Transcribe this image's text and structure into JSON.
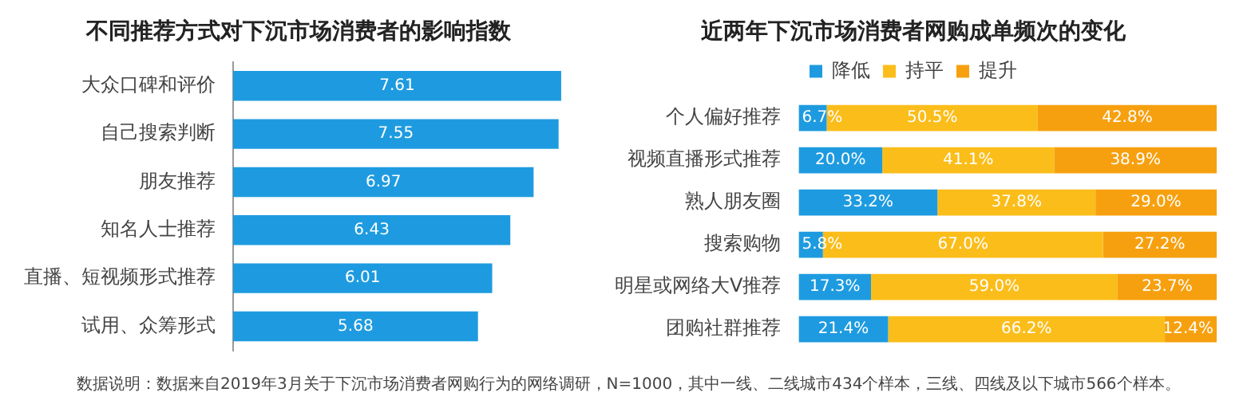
{
  "chart_data": [
    {
      "type": "bar",
      "orientation": "horizontal",
      "title": "不同推荐方式对下沉市场消费者的影响指数",
      "categories": [
        "大众口碑和评价",
        "自己搜索判断",
        "朋友推荐",
        "知名人士推荐",
        "直播、短视频形式推荐",
        "试用、众筹形式"
      ],
      "values": [
        7.61,
        7.55,
        6.97,
        6.43,
        6.01,
        5.68
      ],
      "color": "#1e9be0",
      "data_labels": true,
      "legend": false,
      "annotations": [
        "数据说明：数据来自2019年3月关于下沉市场消费者网购行为的网络调研，N=1000，其中一线、二线城市434个样本，三线、四线及以下城市566个样本。"
      ]
    },
    {
      "type": "bar",
      "orientation": "horizontal",
      "stacked": true,
      "title": "近两年下沉市场消费者网购成单频次的变化",
      "categories": [
        "个人偏好推荐",
        "视频直播形式推荐",
        "熟人朋友圈",
        "搜索购物",
        "明星或网络大V推荐",
        "团购社群推荐"
      ],
      "series": [
        {
          "name": "降低",
          "color": "#1e9be0",
          "values": [
            6.7,
            20.0,
            33.2,
            5.8,
            17.3,
            21.4
          ],
          "value_labels": [
            "6.7%",
            "20.0%",
            "33.2%",
            "5.8%",
            "17.3%",
            "21.4%"
          ]
        },
        {
          "name": "持平",
          "color": "#fbbd1a",
          "values": [
            50.5,
            41.1,
            37.8,
            67.0,
            59.0,
            66.2
          ],
          "value_labels": [
            "50.5%",
            "41.1%",
            "37.8%",
            "67.0%",
            "59.0%",
            "66.2%"
          ]
        },
        {
          "name": "提升",
          "color": "#f7a00f",
          "values": [
            42.8,
            38.9,
            29.0,
            27.2,
            23.7,
            12.4
          ],
          "value_labels": [
            "42.8%",
            "38.9%",
            "29.0%",
            "27.2%",
            "23.7%",
            "12.4%"
          ]
        }
      ],
      "legend": "top"
    }
  ]
}
